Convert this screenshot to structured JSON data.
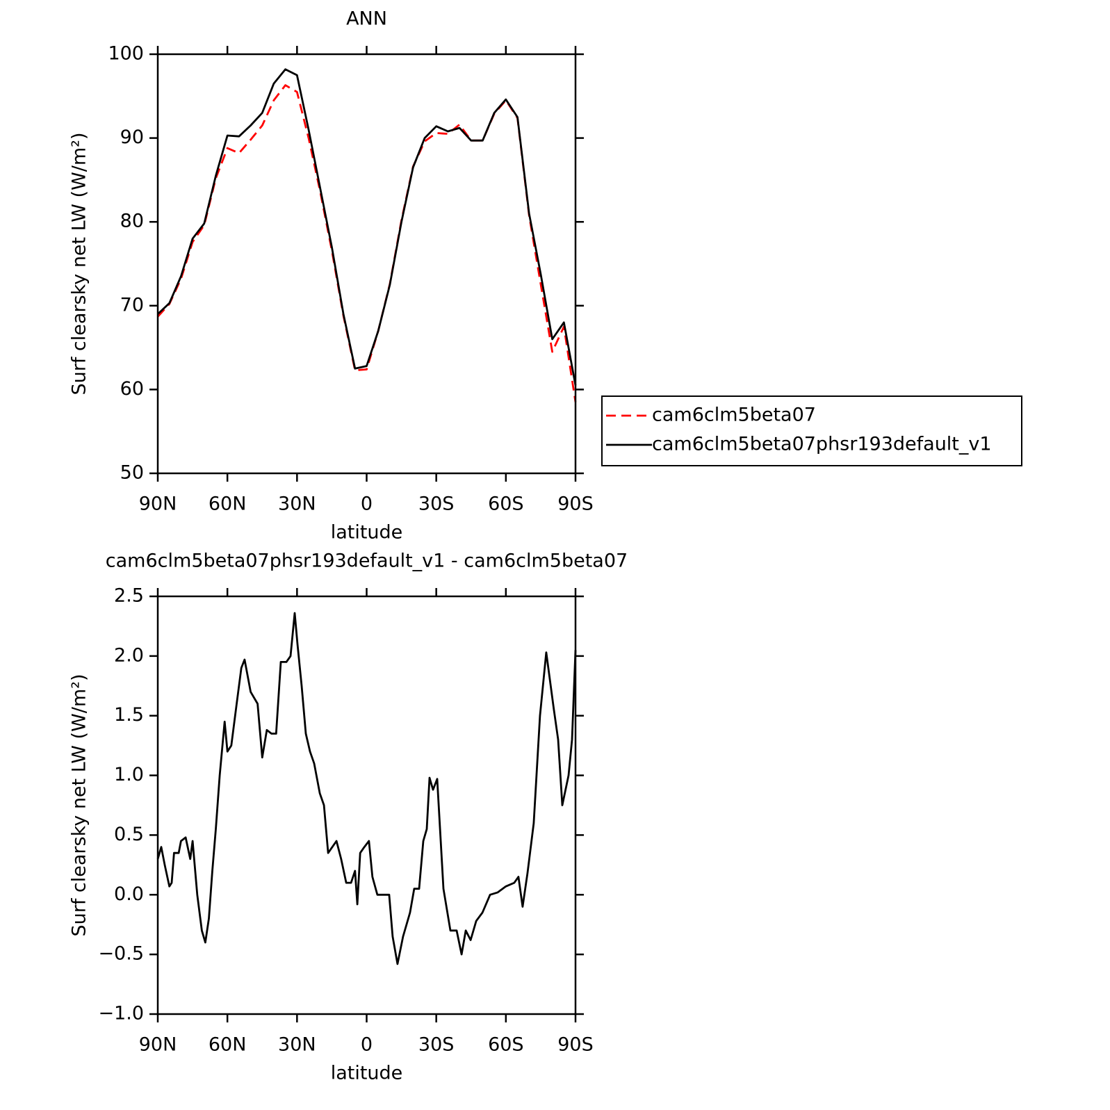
{
  "chart_data": [
    {
      "type": "line",
      "title": "ANN",
      "x_label": "latitude",
      "y_label": "Surf clearsky net LW (W/m²)",
      "x": [
        90,
        85,
        80,
        75,
        70,
        65,
        60,
        55,
        50,
        45,
        40,
        35,
        30,
        25,
        20,
        15,
        10,
        5,
        0,
        -5,
        -10,
        -15,
        -20,
        -25,
        -30,
        -35,
        -40,
        -45,
        -50,
        -55,
        -60,
        -65,
        -70,
        -75,
        -80,
        -85,
        -90
      ],
      "series": [
        {
          "name": "cam6clm5beta07",
          "color": "#ff0000",
          "line_style": "dashed",
          "values": [
            68.7,
            70.2,
            73.2,
            77.6,
            79.6,
            85.2,
            88.8,
            88.2,
            89.8,
            91.5,
            94.5,
            96.3,
            95.5,
            90,
            83.6,
            76.6,
            68.8,
            62.3,
            62.4,
            67,
            72.6,
            80.2,
            86.6,
            89.6,
            90.6,
            90.5,
            91.6,
            89.7,
            89.7,
            92.9,
            94.5,
            92.4,
            80.8,
            72.6,
            64.5,
            67.5,
            58.5
          ]
        },
        {
          "name": "cam6clm5beta07phsr193default_v1",
          "color": "#000000",
          "line_style": "solid",
          "values": [
            69,
            70.3,
            73.5,
            78,
            79.8,
            85.5,
            90.3,
            90.2,
            91.5,
            93,
            96.5,
            98.2,
            97.5,
            91,
            84,
            77,
            69,
            62.5,
            62.8,
            67,
            72.5,
            80,
            86.5,
            90,
            91.4,
            90.8,
            91.2,
            89.7,
            89.7,
            93,
            94.6,
            92.5,
            81,
            73.8,
            66,
            68,
            60.5
          ]
        }
      ],
      "xlim": [
        90,
        -90
      ],
      "xticks": [
        {
          "value": 90,
          "label": "90N"
        },
        {
          "value": 60,
          "label": "60N"
        },
        {
          "value": 30,
          "label": "30N"
        },
        0,
        {
          "value": -30,
          "label": "30S"
        },
        {
          "value": -60,
          "label": "60S"
        },
        {
          "value": -90,
          "label": "90S"
        }
      ],
      "ylim": [
        50,
        100
      ],
      "yticks": [
        50,
        60,
        70,
        80,
        90,
        100
      ],
      "legend": "outside-right"
    },
    {
      "type": "line",
      "title": "cam6clm5beta07phsr193default_v1 - cam6clm5beta07",
      "x_label": "latitude",
      "y_label": "Surf clearsky net LW (W/m²)",
      "x": [
        90,
        88.5,
        87,
        85,
        84,
        83,
        81,
        80,
        78,
        76,
        75,
        73,
        71,
        69.5,
        68,
        66.5,
        65,
        63.3,
        61.2,
        60,
        58.3,
        56,
        54,
        52.6,
        50,
        47,
        45,
        43,
        41,
        39,
        37,
        34.6,
        32.8,
        31,
        29.8,
        28,
        26.2,
        24.4,
        22.6,
        20.2,
        18.4,
        16.6,
        13,
        11,
        8.8,
        6.7,
        5,
        4,
        2.8,
        1,
        -1,
        -2.5,
        -4.6,
        -7.6,
        -9.7,
        -11.2,
        -13.3,
        -15.7,
        -18.7,
        -20.5,
        -22.6,
        -24.4,
        -25.9,
        -27.1,
        -28.6,
        -30.4,
        -33.1,
        -36.1,
        -38.8,
        -40.9,
        -42.7,
        -44.8,
        -47.2,
        -49.9,
        -53.2,
        -56.5,
        -60,
        -63.6,
        -65.4,
        -67.2,
        -69.3,
        -72,
        -74.7,
        -77.4,
        -80.7,
        -82.5,
        -84.3,
        -87,
        -88.5,
        -90
      ],
      "series": [
        {
          "name": "difference",
          "color": "#000000",
          "line_style": "solid",
          "values": [
            0.3,
            0.4,
            0.25,
            0.07,
            0.1,
            0.35,
            0.35,
            0.45,
            0.48,
            0.3,
            0.45,
            0.0,
            -0.3,
            -0.4,
            -0.2,
            0.2,
            0.55,
            1.0,
            1.45,
            1.2,
            1.25,
            1.6,
            1.9,
            1.97,
            1.7,
            1.6,
            1.15,
            1.38,
            1.35,
            1.35,
            1.95,
            1.95,
            2.0,
            2.36,
            2.1,
            1.75,
            1.35,
            1.2,
            1.1,
            0.85,
            0.75,
            0.35,
            0.45,
            0.3,
            0.1,
            0.1,
            0.2,
            -0.08,
            0.35,
            0.4,
            0.45,
            0.15,
            0.0,
            0.0,
            0.0,
            -0.35,
            -0.58,
            -0.35,
            -0.15,
            0.05,
            0.05,
            0.45,
            0.55,
            0.98,
            0.88,
            0.97,
            0.05,
            -0.3,
            -0.3,
            -0.5,
            -0.3,
            -0.38,
            -0.22,
            -0.15,
            0.0,
            0.02,
            0.07,
            0.1,
            0.15,
            -0.1,
            0.18,
            0.6,
            1.5,
            2.03,
            1.55,
            1.3,
            0.75,
            1.0,
            1.3,
            2.05
          ]
        }
      ],
      "xlim": [
        90,
        -90
      ],
      "xticks": [
        {
          "value": 90,
          "label": "90N"
        },
        {
          "value": 60,
          "label": "60N"
        },
        {
          "value": 30,
          "label": "30N"
        },
        0,
        {
          "value": -30,
          "label": "30S"
        },
        {
          "value": -60,
          "label": "60S"
        },
        {
          "value": -90,
          "label": "90S"
        }
      ],
      "ylim": [
        -1.0,
        2.5
      ],
      "yticks": [
        {
          "value": -1.0,
          "label": "−1.0"
        },
        {
          "value": -0.5,
          "label": "−0.5"
        },
        {
          "value": 0.0,
          "label": "0.0"
        },
        0.5,
        {
          "value": 1.0,
          "label": "1.0"
        },
        1.5,
        {
          "value": 2.0,
          "label": "2.0"
        },
        2.5
      ]
    }
  ]
}
